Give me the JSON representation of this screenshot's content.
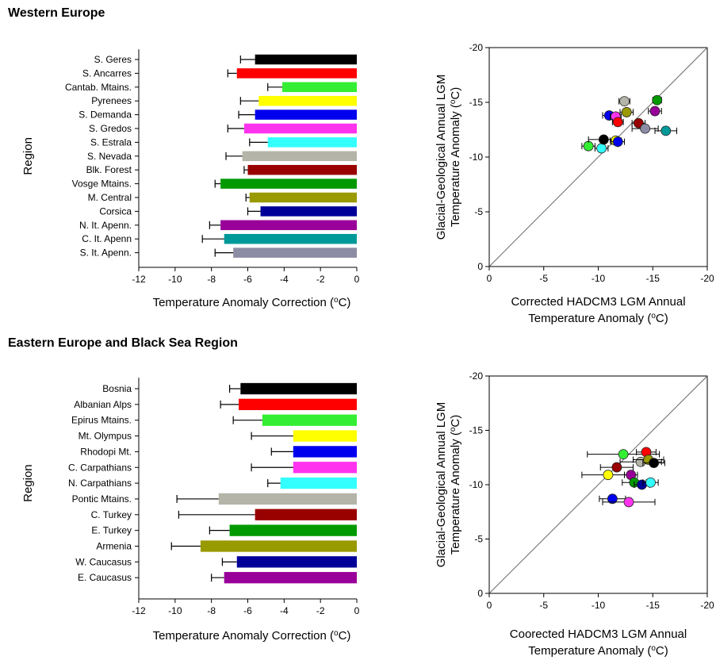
{
  "sections": {
    "western": "Western Europe",
    "eastern": "Eastern Europe and Black Sea Region"
  },
  "chart_data": [
    {
      "id": "bar-west",
      "type": "bar",
      "orientation": "horizontal",
      "title": "",
      "ylabel": "Region",
      "xlabel": "Temperature Anomaly Correction (",
      "xlabel_unit_sup": "o",
      "xlabel_unit": "C)",
      "xlim": [
        -12,
        0
      ],
      "xticks": [
        -12,
        -10,
        -8,
        -6,
        -4,
        -2,
        0
      ],
      "grid": false,
      "categories": [
        "S. Geres",
        "S. Ancarres",
        "Cantab. Mtains.",
        "Pyrenees",
        "S. Demanda",
        "S. Gredos",
        "S. Estrala",
        "S. Nevada",
        "Blk. Forest",
        "Vosge Mtains.",
        "M. Central",
        "Corsica",
        "N. It. Apenn.",
        "C. It. Apenn",
        "S. It. Apenn."
      ],
      "values": [
        -5.6,
        -6.6,
        -4.1,
        -5.4,
        -5.6,
        -6.2,
        -4.9,
        -6.3,
        -6.0,
        -7.5,
        -5.9,
        -5.3,
        -7.5,
        -7.3,
        -6.8
      ],
      "errors": [
        0.8,
        0.5,
        0.8,
        1.0,
        0.9,
        0.9,
        1.0,
        0.9,
        0.2,
        0.3,
        0.2,
        0.7,
        0.6,
        1.2,
        1.0
      ],
      "colors": [
        "#000000",
        "#ff0000",
        "#33ee33",
        "#ffff00",
        "#0000ee",
        "#ff33ee",
        "#33ffff",
        "#b4b4a8",
        "#990000",
        "#009900",
        "#999900",
        "#000099",
        "#990099",
        "#009999",
        "#8c8ca4"
      ]
    },
    {
      "id": "scatter-west",
      "type": "scatter",
      "title": "",
      "xlabel_lines": [
        "Corrected HADCM3 LGM Annual",
        "Temperature Anomaly ("
      ],
      "xlabel_unit_sup": "o",
      "xlabel_unit": "C)",
      "ylabel_lines": [
        "Glacial-Geological Annual LGM",
        "Temperature Anomaly ("
      ],
      "ylabel_unit_sup": "o",
      "ylabel_unit": "C)",
      "xlim": [
        0,
        -20
      ],
      "ylim": [
        0,
        -20
      ],
      "xticks": [
        0,
        -5,
        -10,
        -15,
        -20
      ],
      "yticks": [
        0,
        -5,
        -10,
        -15,
        -20
      ],
      "reference_line": "1:1",
      "grid": false,
      "points": [
        {
          "x": -9.1,
          "y": -11.0,
          "xerr": 0.6,
          "yerr": 0.4,
          "color": "#33ee33"
        },
        {
          "x": -10.3,
          "y": -10.8,
          "xerr": 0.6,
          "yerr": 0.4,
          "color": "#33ffff"
        },
        {
          "x": -10.5,
          "y": -11.6,
          "xerr": 1.4,
          "yerr": 0.3,
          "color": "#000000"
        },
        {
          "x": -11.6,
          "y": -11.5,
          "xerr": 0.5,
          "yerr": 0.4,
          "color": "#ffff00"
        },
        {
          "x": -11.8,
          "y": -11.4,
          "xerr": 0.6,
          "yerr": 0.5,
          "color": "#0000ee"
        },
        {
          "x": -11.0,
          "y": -13.8,
          "xerr": 0.6,
          "yerr": 0.3,
          "color": "#0000ee"
        },
        {
          "x": -11.6,
          "y": -13.7,
          "xerr": 0.5,
          "yerr": 0.3,
          "color": "#ff33ee"
        },
        {
          "x": -11.8,
          "y": -13.2,
          "xerr": 0.5,
          "yerr": 0.4,
          "color": "#ff0000"
        },
        {
          "x": -12.4,
          "y": -15.1,
          "xerr": 0.5,
          "yerr": 0.4,
          "color": "#b4b4a8"
        },
        {
          "x": -12.6,
          "y": -14.1,
          "xerr": 0.6,
          "yerr": 0.3,
          "color": "#999900"
        },
        {
          "x": -13.7,
          "y": -13.1,
          "xerr": 0.6,
          "yerr": 0.4,
          "color": "#990000"
        },
        {
          "x": -14.3,
          "y": -12.6,
          "xerr": 1.2,
          "yerr": 0.3,
          "color": "#8c8ca4"
        },
        {
          "x": -15.2,
          "y": -14.2,
          "xerr": 0.6,
          "yerr": 0.3,
          "color": "#990099"
        },
        {
          "x": -15.4,
          "y": -15.2,
          "xerr": 0.4,
          "yerr": 0.3,
          "color": "#009900"
        },
        {
          "x": -16.2,
          "y": -12.4,
          "xerr": 1.0,
          "yerr": 0.3,
          "color": "#009999"
        }
      ]
    },
    {
      "id": "bar-east",
      "type": "bar",
      "orientation": "horizontal",
      "title": "",
      "ylabel": "Region",
      "xlabel": "Temperature Anomaly Correction (",
      "xlabel_unit_sup": "o",
      "xlabel_unit": "C)",
      "xlim": [
        -12,
        0
      ],
      "xticks": [
        -12,
        -10,
        -8,
        -6,
        -4,
        -2,
        0
      ],
      "grid": false,
      "categories": [
        "Bosnia",
        "Albanian Alps",
        "Epirus Mtains.",
        "Mt. Olympus",
        "Rhodopi Mt.",
        "C. Carpathians",
        "N. Carpathians",
        "Pontic Mtains.",
        "C. Turkey",
        "E. Turkey",
        "Armenia",
        "W. Caucasus",
        "E. Caucasus"
      ],
      "values": [
        -6.4,
        -6.5,
        -5.2,
        -3.5,
        -3.5,
        -3.5,
        -4.2,
        -7.6,
        -5.6,
        -7.0,
        -8.6,
        -6.6,
        -7.3
      ],
      "errors": [
        0.6,
        1.0,
        1.6,
        2.3,
        1.2,
        2.3,
        0.7,
        2.3,
        4.2,
        1.1,
        1.6,
        0.8,
        0.7
      ],
      "colors": [
        "#000000",
        "#ff0000",
        "#33ee33",
        "#ffff00",
        "#0000ee",
        "#ff33ee",
        "#33ffff",
        "#b4b4a8",
        "#990000",
        "#009900",
        "#999900",
        "#000099",
        "#990099"
      ]
    },
    {
      "id": "scatter-east",
      "type": "scatter",
      "title": "",
      "xlabel_lines": [
        "Coorected  HADCM3 LGM Annual",
        "Temperature Anomaly ("
      ],
      "xlabel_unit_sup": "o",
      "xlabel_unit": "C)",
      "ylabel_lines": [
        "Glacial-Geological Annual LGM",
        "Temperature Anomaly ("
      ],
      "ylabel_unit_sup": "o",
      "ylabel_unit": "C)",
      "xlim": [
        0,
        -20
      ],
      "ylim": [
        0,
        -20
      ],
      "xticks": [
        0,
        -5,
        -10,
        -15,
        -20
      ],
      "yticks": [
        0,
        -5,
        -10,
        -15,
        -20
      ],
      "reference_line": "1:1",
      "grid": false,
      "points": [
        {
          "x": -12.3,
          "y": -12.8,
          "xerr": 3.3,
          "yerr": 0.4,
          "color": "#33ee33"
        },
        {
          "x": -14.4,
          "y": -13.0,
          "xerr": 0.9,
          "yerr": 0.3,
          "color": "#ff0000"
        },
        {
          "x": -13.9,
          "y": -12.1,
          "xerr": 1.9,
          "yerr": 0.3,
          "color": "#b4b4a8"
        },
        {
          "x": -14.6,
          "y": -12.3,
          "xerr": 1.4,
          "yerr": 0.3,
          "color": "#999900"
        },
        {
          "x": -15.1,
          "y": -12.0,
          "xerr": 1.0,
          "yerr": 0.3,
          "color": "#000000"
        },
        {
          "x": -11.7,
          "y": -11.6,
          "xerr": 1.5,
          "yerr": 0.3,
          "color": "#990000"
        },
        {
          "x": -10.9,
          "y": -10.9,
          "xerr": 2.4,
          "yerr": 0.3,
          "color": "#ffff00"
        },
        {
          "x": -13.0,
          "y": -10.9,
          "xerr": 0.6,
          "yerr": 0.3,
          "color": "#990099"
        },
        {
          "x": -13.3,
          "y": -10.2,
          "xerr": 1.1,
          "yerr": 0.3,
          "color": "#009900"
        },
        {
          "x": -14.0,
          "y": -10.0,
          "xerr": 0.7,
          "yerr": 0.3,
          "color": "#000099"
        },
        {
          "x": -14.8,
          "y": -10.2,
          "xerr": 0.7,
          "yerr": 0.3,
          "color": "#33ffff"
        },
        {
          "x": -11.3,
          "y": -8.7,
          "xerr": 1.2,
          "yerr": 0.3,
          "color": "#0000ee"
        },
        {
          "x": -12.8,
          "y": -8.4,
          "xerr": 2.4,
          "yerr": 0.3,
          "color": "#ff33ee"
        }
      ]
    }
  ]
}
